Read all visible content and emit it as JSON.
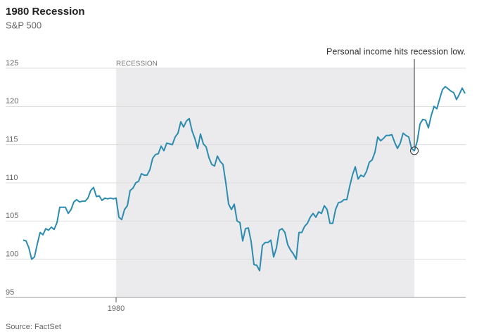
{
  "chart_data": {
    "type": "line",
    "title": "1980 Recession",
    "subtitle": "S&P 500",
    "source": "Source: FactSet",
    "series": [
      {
        "name": "S&P 500",
        "color": "#2b8cb0",
        "values": [
          102.5,
          102.4,
          101.5,
          100,
          100.3,
          102,
          103.5,
          103.2,
          104,
          103.8,
          104.2,
          103.9,
          104.8,
          106.8,
          106.8,
          106.8,
          106,
          106.5,
          107.5,
          107.8,
          107.5,
          107.6,
          107.6,
          108,
          109,
          109.4,
          108.2,
          108.3,
          107.7,
          108,
          107.9,
          108,
          107.9,
          108,
          105.5,
          105.2,
          106.5,
          107,
          109,
          109.3,
          110,
          110.2,
          111.2,
          111,
          111,
          111.7,
          113.2,
          113.7,
          113.8,
          114.8,
          114.2,
          115.2,
          115.1,
          115,
          116,
          116.5,
          118,
          117.3,
          118.1,
          118.4,
          116.8,
          115.8,
          114.5,
          116.4,
          115.1,
          114.7,
          113.3,
          112.4,
          112.2,
          113.5,
          112.8,
          112.4,
          110,
          107.2,
          106.5,
          107.2,
          105,
          104.8,
          102.4,
          104,
          104.1,
          102.3,
          99.3,
          99.2,
          98.5,
          101.8,
          102.2,
          102.2,
          102.5,
          100.3,
          101.5,
          103.8,
          104,
          103.5,
          101.9,
          101.2,
          100.7,
          100,
          103.5,
          103.5,
          104.3,
          104.7,
          105.5,
          106,
          105.5,
          106.2,
          106,
          107,
          106.5,
          104.7,
          104.7,
          106.5,
          107.4,
          107.5,
          107.8,
          107.8,
          109.5,
          111,
          112.1,
          110.5,
          111,
          110.8,
          111.5,
          112.7,
          113,
          114,
          116,
          115.5,
          115.8,
          116.2,
          116.2,
          116.3,
          115.3,
          114.5,
          115.2,
          116.5,
          116.2,
          116,
          114.5,
          114.2,
          115.4,
          117.7,
          118.3,
          118.2,
          117.2,
          118.8,
          120,
          119.7,
          121,
          122.2,
          122.6,
          122.3,
          122,
          121.8,
          120.9,
          121.6,
          122.4,
          121.7
        ]
      }
    ],
    "xlim": [
      0,
      157
    ],
    "xticks": [
      {
        "value": 33,
        "label": "1980"
      }
    ],
    "ylim": [
      95,
      125
    ],
    "yticks": [
      95,
      100,
      105,
      110,
      115,
      120,
      125
    ],
    "grid": true,
    "recession": {
      "start": 33,
      "end": 139,
      "label": "RECESSION",
      "color": "#ebebed"
    },
    "annotation": {
      "x": 139,
      "text": "Personal income hits recession low."
    }
  }
}
